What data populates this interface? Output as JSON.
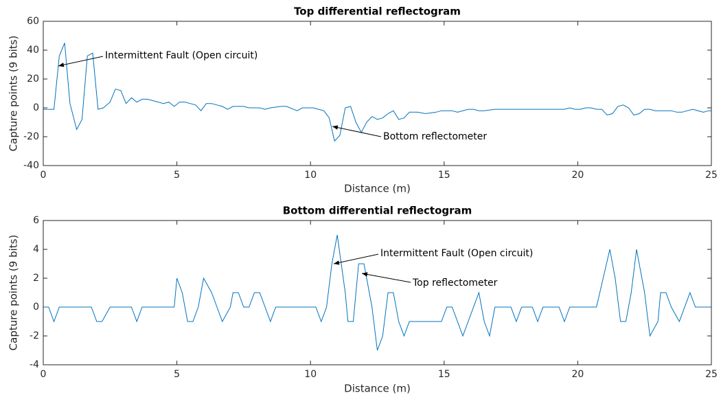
{
  "chart_data": [
    {
      "type": "line",
      "title": "Top differential reflectogram",
      "xlabel": "Distance (m)",
      "ylabel": "Capture points (9 bits)",
      "color": "#0072bd",
      "x": [
        0,
        0.4,
        0.6,
        0.8,
        1.0,
        1.25,
        1.45,
        1.65,
        1.85,
        2.05,
        2.25,
        2.5,
        2.7,
        2.9,
        3.1,
        3.3,
        3.5,
        3.7,
        3.9,
        4.1,
        4.3,
        4.5,
        4.7,
        4.9,
        5.1,
        5.3,
        5.5,
        5.7,
        5.9,
        6.1,
        6.3,
        6.5,
        6.7,
        6.9,
        7.1,
        7.5,
        7.7,
        8.1,
        8.3,
        8.5,
        8.9,
        9.1,
        9.5,
        9.7,
        10.1,
        10.3,
        10.5,
        10.7,
        10.9,
        11.1,
        11.3,
        11.5,
        11.7,
        11.9,
        12.1,
        12.3,
        12.5,
        12.7,
        12.9,
        13.1,
        13.3,
        13.5,
        13.7,
        14.0,
        14.3,
        14.7,
        14.9,
        15.3,
        15.5,
        15.9,
        16.1,
        16.3,
        16.5,
        16.9,
        19.5,
        19.7,
        19.9,
        20.1,
        20.3,
        20.5,
        20.7,
        20.9,
        21.1,
        21.3,
        21.5,
        21.7,
        21.9,
        22.1,
        22.3,
        22.5,
        22.7,
        22.9,
        23.5,
        23.7,
        23.9,
        24.3,
        24.7,
        24.9,
        25
      ],
      "values": [
        -1,
        -1,
        36,
        45,
        3,
        -15,
        -8,
        36,
        38,
        -1,
        0,
        4,
        13,
        12,
        3,
        7,
        4,
        6,
        6,
        5,
        4,
        3,
        4,
        1,
        4,
        4,
        3,
        2,
        -2,
        3,
        3,
        2,
        1,
        -1,
        1,
        1,
        0,
        0,
        -1,
        0,
        1,
        1,
        -2,
        0,
        0,
        -1,
        -2,
        -7,
        -23,
        -19,
        0,
        1,
        -10,
        -17,
        -10,
        -6,
        -8,
        -7,
        -4,
        -2,
        -8,
        -7,
        -3,
        -3,
        -4,
        -3,
        -2,
        -2,
        -3,
        -1,
        -1,
        -2,
        -2,
        -1,
        -1,
        0,
        -1,
        -1,
        0,
        0,
        -1,
        -1,
        -5,
        -4,
        1,
        2,
        0,
        -5,
        -4,
        -1,
        -1,
        -2,
        -2,
        -3,
        -3,
        -1,
        -3,
        -2,
        -2
      ],
      "xlim": [
        0,
        25
      ],
      "ylim": [
        -40,
        60
      ],
      "xticks": [
        0,
        5,
        10,
        15,
        20,
        25
      ],
      "yticks": [
        -40,
        -20,
        0,
        20,
        40,
        60
      ],
      "annotations": [
        {
          "text": "Intermittent Fault (Open circuit)"
        },
        {
          "text": "Bottom reflectometer"
        }
      ]
    },
    {
      "type": "line",
      "title": "Bottom differential reflectogram",
      "xlabel": "Distance (m)",
      "ylabel": "Capture points (9 bits)",
      "color": "#0072bd",
      "x": [
        0,
        0.2,
        0.4,
        0.6,
        1.8,
        2.0,
        2.2,
        2.5,
        3.3,
        3.5,
        3.7,
        4.9,
        5.0,
        5.2,
        5.4,
        5.6,
        5.8,
        6.0,
        6.3,
        6.5,
        6.7,
        7.0,
        7.1,
        7.3,
        7.5,
        7.7,
        7.9,
        8.1,
        8.3,
        8.5,
        8.7,
        10.2,
        10.4,
        10.6,
        10.8,
        11.0,
        11.3,
        11.4,
        11.6,
        11.8,
        12.0,
        12.3,
        12.5,
        12.7,
        12.9,
        13.1,
        13.3,
        13.5,
        13.7,
        14.9,
        15.1,
        15.3,
        15.7,
        16.3,
        16.5,
        16.7,
        16.9,
        17.5,
        17.7,
        17.9,
        18.3,
        18.5,
        18.7,
        19.3,
        19.5,
        19.7,
        20.7,
        21.2,
        21.4,
        21.6,
        21.8,
        22.0,
        22.2,
        22.5,
        22.7,
        23.0,
        23.1,
        23.3,
        23.5,
        23.8,
        24.2,
        24.4,
        25
      ],
      "values": [
        0,
        0,
        -1,
        0,
        0,
        -1,
        -1,
        0,
        0,
        -1,
        0,
        0,
        2,
        1,
        -1,
        -1,
        0,
        2,
        1,
        0,
        -1,
        0,
        1,
        1,
        0,
        0,
        1,
        1,
        0,
        -1,
        0,
        0,
        -1,
        0,
        3,
        5,
        1,
        -1,
        -1,
        3,
        3,
        0,
        -3,
        -2,
        1,
        1,
        -1,
        -2,
        -1,
        -1,
        0,
        0,
        -2,
        1,
        -1,
        -2,
        0,
        0,
        -1,
        0,
        0,
        -1,
        0,
        0,
        -1,
        0,
        0,
        4,
        2,
        -1,
        -1,
        1,
        4,
        1,
        -2,
        -1,
        1,
        1,
        0,
        -1,
        1,
        0,
        0
      ],
      "xlim": [
        0,
        25
      ],
      "ylim": [
        -4,
        6
      ],
      "xticks": [
        0,
        5,
        10,
        15,
        20,
        25
      ],
      "yticks": [
        -4,
        -2,
        0,
        2,
        4,
        6
      ],
      "annotations": [
        {
          "text": "Intermittent Fault (Open circuit)"
        },
        {
          "text": "Top reflectometer"
        }
      ]
    }
  ]
}
